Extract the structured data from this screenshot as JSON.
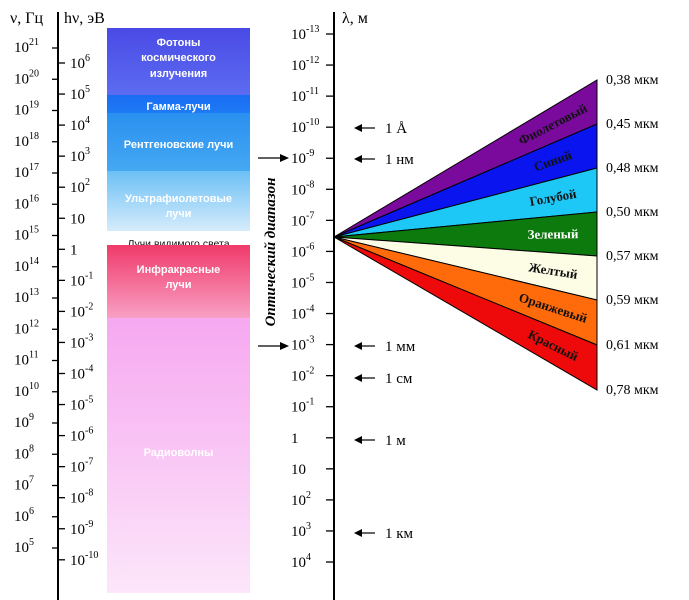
{
  "headers": {
    "nu": "ν, Гц",
    "hnu": "hν, эВ",
    "lambda": "λ, м"
  },
  "freq_ticks": [
    {
      "base": "10",
      "exp": "21"
    },
    {
      "base": "10",
      "exp": "20"
    },
    {
      "base": "10",
      "exp": "19"
    },
    {
      "base": "10",
      "exp": "18"
    },
    {
      "base": "10",
      "exp": "17"
    },
    {
      "base": "10",
      "exp": "16"
    },
    {
      "base": "10",
      "exp": "15"
    },
    {
      "base": "10",
      "exp": "14"
    },
    {
      "base": "10",
      "exp": "13"
    },
    {
      "base": "10",
      "exp": "12"
    },
    {
      "base": "10",
      "exp": "11"
    },
    {
      "base": "10",
      "exp": "10"
    },
    {
      "base": "10",
      "exp": "9"
    },
    {
      "base": "10",
      "exp": "8"
    },
    {
      "base": "10",
      "exp": "7"
    },
    {
      "base": "10",
      "exp": "6"
    },
    {
      "base": "10",
      "exp": "5"
    }
  ],
  "energy_ticks": [
    {
      "base": "10",
      "exp": "6"
    },
    {
      "base": "10",
      "exp": "5"
    },
    {
      "base": "10",
      "exp": "4"
    },
    {
      "base": "10",
      "exp": "3"
    },
    {
      "base": "10",
      "exp": "2"
    },
    {
      "base": "10",
      "exp": ""
    },
    {
      "base": "1",
      "exp": ""
    },
    {
      "base": "10",
      "exp": "-1"
    },
    {
      "base": "10",
      "exp": "-2"
    },
    {
      "base": "10",
      "exp": "-3"
    },
    {
      "base": "10",
      "exp": "-4"
    },
    {
      "base": "10",
      "exp": "-5"
    },
    {
      "base": "10",
      "exp": "-6"
    },
    {
      "base": "10",
      "exp": "-7"
    },
    {
      "base": "10",
      "exp": "-8"
    },
    {
      "base": "10",
      "exp": "-9"
    },
    {
      "base": "10",
      "exp": "-10"
    }
  ],
  "wavelength_ticks": [
    {
      "base": "10",
      "exp": "-13"
    },
    {
      "base": "10",
      "exp": "-12"
    },
    {
      "base": "10",
      "exp": "-11"
    },
    {
      "base": "10",
      "exp": "-10"
    },
    {
      "base": "10",
      "exp": "-9"
    },
    {
      "base": "10",
      "exp": "-8"
    },
    {
      "base": "10",
      "exp": "-7"
    },
    {
      "base": "10",
      "exp": "-6"
    },
    {
      "base": "10",
      "exp": "-5"
    },
    {
      "base": "10",
      "exp": "-4"
    },
    {
      "base": "10",
      "exp": "-3"
    },
    {
      "base": "10",
      "exp": "-2"
    },
    {
      "base": "10",
      "exp": "-1"
    },
    {
      "base": "1",
      "exp": ""
    },
    {
      "base": "10",
      "exp": ""
    },
    {
      "base": "10",
      "exp": "2"
    },
    {
      "base": "10",
      "exp": "3"
    },
    {
      "base": "10",
      "exp": "4"
    }
  ],
  "bands": [
    {
      "lines": [
        "Фотоны",
        "космического",
        "излучения"
      ],
      "color_top": "#4a4ae6",
      "color_bottom": "#5c6cf0"
    },
    {
      "lines": [
        "Гамма-лучи"
      ],
      "color_top": "#1a6cf2",
      "color_bottom": "#1e7af5"
    },
    {
      "lines": [
        "Рентгеновские лучи"
      ],
      "color_top": "#2a90f0",
      "color_bottom": "#45a8f2"
    },
    {
      "lines": [
        "Ультрафиолетовые",
        "лучи"
      ],
      "color_top": "#6cc0f5",
      "color_bottom": "#d6ecfc"
    },
    {
      "lines": [
        "Лучи видимого света"
      ],
      "color_top": "#ffffff",
      "color_bottom": "#ffffff"
    },
    {
      "lines": [
        "Инфракрасные",
        "лучи"
      ],
      "color_top": "#f03a6a",
      "color_bottom": "#f8a0c4"
    },
    {
      "lines": [
        "Радиоволны"
      ],
      "color_top": "#f6a8f0",
      "color_bottom": "#fce6fa"
    }
  ],
  "optical_label": "Оптический диапазон",
  "markers": [
    {
      "text": "1 Å"
    },
    {
      "text": "1 нм"
    },
    {
      "text": "1 мм"
    },
    {
      "text": "1 см"
    },
    {
      "text": "1 м"
    },
    {
      "text": "1 км"
    }
  ],
  "colors": [
    {
      "name": "Фиолетовый",
      "fill": "#7a0a9c",
      "text_color": "#111111"
    },
    {
      "name": "Синий",
      "fill": "#0a14ee",
      "text_color": "#111111"
    },
    {
      "name": "Голубой",
      "fill": "#1ec8f6",
      "text_color": "#111111"
    },
    {
      "name": "Зеленый",
      "fill": "#0c7a0c",
      "text_color": "#ffffff"
    },
    {
      "name": "Желтый",
      "fill": "#fdfde6",
      "text_color": "#111111"
    },
    {
      "name": "Оранжевый",
      "fill": "#ff6a0a",
      "text_color": "#111111"
    },
    {
      "name": "Красный",
      "fill": "#ee0a0a",
      "text_color": "#111111"
    }
  ],
  "boundaries": [
    "0,38 мкм",
    "0,45 мкм",
    "0,48 мкм",
    "0,50 мкм",
    "0,57 мкм",
    "0,59 мкм",
    "0,61 мкм",
    "0,78 мкм"
  ]
}
